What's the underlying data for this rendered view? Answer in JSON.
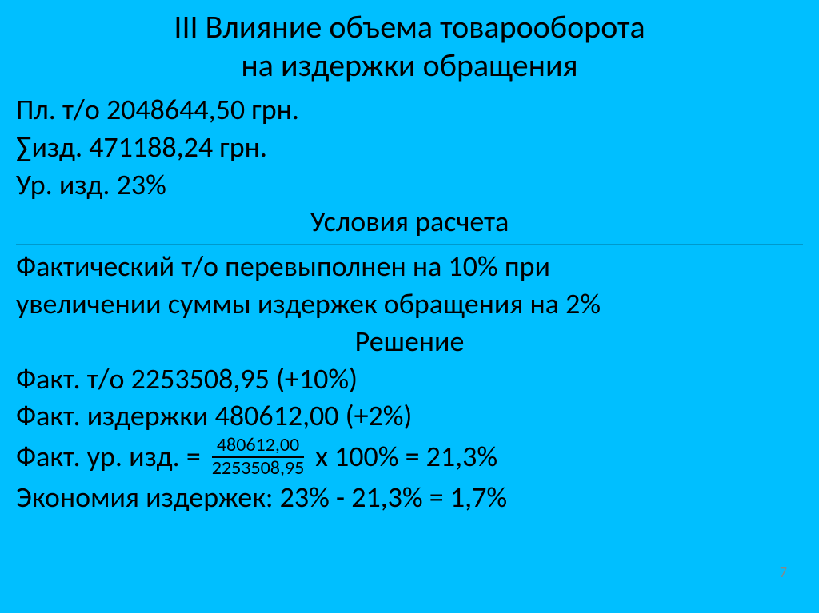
{
  "slide": {
    "title_line1": "III  Влияние объема товарооборота",
    "title_line2": "на издержки обращения",
    "line_plan_to": "Пл. т/о 2048644,50 грн.",
    "line_sum_izd": "∑изд. 471188,24 грн.",
    "line_ur_izd": "Ур. изд. 23%",
    "subheading_conditions": "Условия расчета",
    "line_condition1": "Фактический т/о перевыполнен на 10% при",
    "line_condition2": "увеличении суммы издержек обращения на 2%",
    "subheading_solution": "Решение",
    "line_fact_to": "Факт. т/о 2253508,95 (+10%)",
    "line_fact_izd": "Факт. издержки 480612,00 (+2%)",
    "formula_prefix": "Факт. ур. изд. = ",
    "formula_numerator": "480612,00",
    "formula_denominator": "2253508,95",
    "formula_suffix": " х 100% = 21,3%",
    "line_economy": "Экономия издержек: 23% - 21,3% = 1,7%",
    "page_number": "7"
  },
  "style": {
    "background_color": "#00bfff",
    "text_color": "#000000",
    "title_fontsize": 40,
    "body_fontsize": 36,
    "fraction_fontsize": 24,
    "hr_color": "#0099cc",
    "page_number_color": "#888888"
  }
}
